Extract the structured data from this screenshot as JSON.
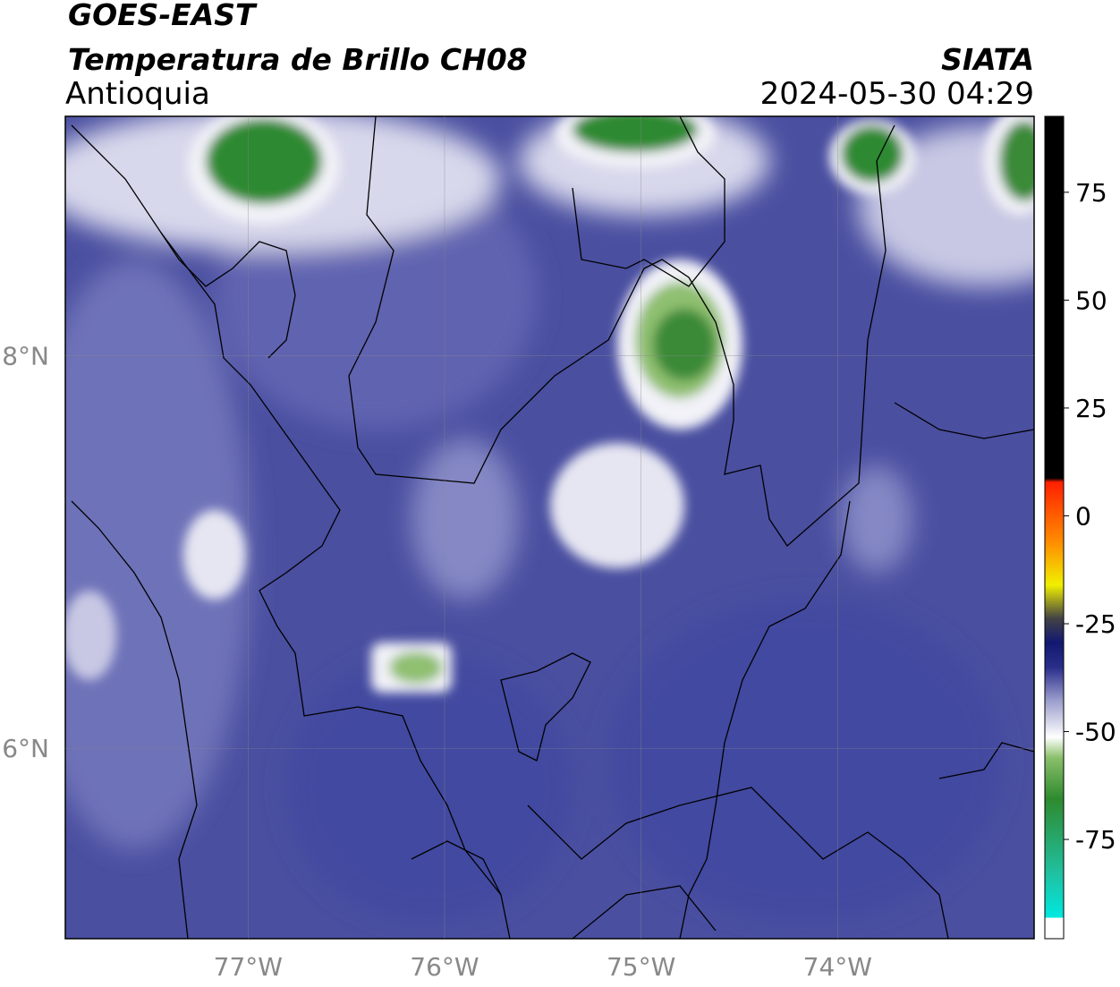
{
  "header": {
    "title": "GOES-EAST",
    "subtitle": "Temperatura de Brillo CH08",
    "region": "Antioquia",
    "source": "SIATA",
    "datetime": "2024-05-30 04:29"
  },
  "map": {
    "lonlim": [
      -77.93,
      -73.0
    ],
    "latlim": [
      5.03,
      9.22
    ],
    "lon_ticks": [
      {
        "value": -77,
        "label": "77°W"
      },
      {
        "value": -76,
        "label": "76°W"
      },
      {
        "value": -75,
        "label": "75°W"
      },
      {
        "value": -74,
        "label": "74°W"
      }
    ],
    "lat_ticks": [
      {
        "value": 8,
        "label": "8°N"
      },
      {
        "value": 6,
        "label": "6°N"
      }
    ]
  },
  "colorbar": {
    "lim": [
      -98,
      92.6
    ],
    "ticks": [
      75,
      50,
      25,
      0,
      -25,
      -50,
      -75
    ]
  }
}
